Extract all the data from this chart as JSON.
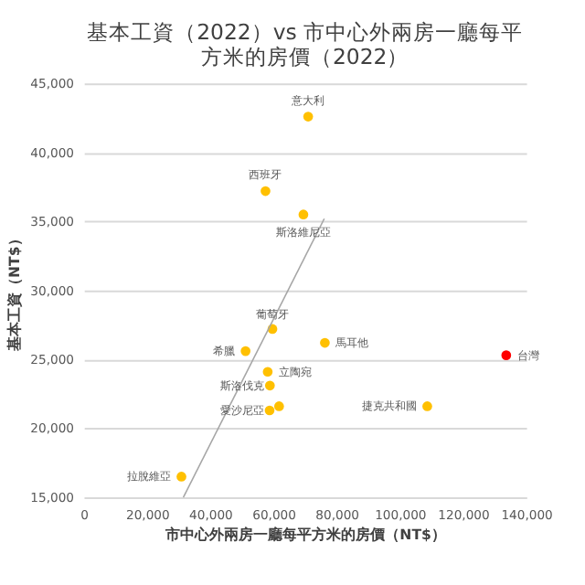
{
  "chart_data": {
    "type": "scatter",
    "title": "基本工資（2022）vs 市中心外兩房一廳每平方米的房價（2022）",
    "xlabel": "市中心外兩房一廳每平方米的房價（NT$）",
    "ylabel": "基本工資（NT$）",
    "xlim": [
      0,
      140000
    ],
    "xticks": [
      {
        "value": 0,
        "label": "0"
      },
      {
        "value": 20000,
        "label": "20,000"
      },
      {
        "value": 40000,
        "label": "40,000"
      },
      {
        "value": 60000,
        "label": "60,000"
      },
      {
        "value": 80000,
        "label": "80,000"
      },
      {
        "value": 100000,
        "label": "100,000"
      },
      {
        "value": 120000,
        "label": "120,000"
      },
      {
        "value": 140000,
        "label": "140,000"
      }
    ],
    "ylim": [
      15000,
      45000
    ],
    "yticks": [
      {
        "value": 15000,
        "label": "15,000"
      },
      {
        "value": 20000,
        "label": "20,000"
      },
      {
        "value": 25000,
        "label": "25,000"
      },
      {
        "value": 30000,
        "label": "30,000"
      },
      {
        "value": 35000,
        "label": "35,000"
      },
      {
        "value": 40000,
        "label": "40,000"
      },
      {
        "value": 45000,
        "label": "45,000"
      }
    ],
    "grid": "y",
    "series": [
      {
        "type": "scatter",
        "marker": "circle",
        "x": [
          71000,
          57500,
          69500,
          59700,
          51200,
          58200,
          58900,
          58800,
          61800,
          76300,
          133700,
          108700,
          30900
        ],
        "values": [
          42600,
          37200,
          35500,
          27200,
          25600,
          24100,
          23100,
          21300,
          21600,
          26200,
          25300,
          21600,
          16500
        ],
        "colors": [
          "#ffc000",
          "#ffc000",
          "#ffc000",
          "#ffc000",
          "#ffc000",
          "#ffc000",
          "#ffc000",
          "#ffc000",
          "#ffc000",
          "#ffc000",
          "#ff0000",
          "#ffc000",
          "#ffc000"
        ]
      },
      {
        "type": "line",
        "marker": "none",
        "color": "#a6a6a6",
        "x": [
          31500,
          76100
        ],
        "values": [
          15000,
          35200
        ]
      }
    ],
    "annotations": [
      {
        "text": "意大利",
        "x": 71000,
        "y": 42600
      },
      {
        "text": "西班牙",
        "x": 57500,
        "y": 37200
      },
      {
        "text": "斯洛維尼亞",
        "x": 69500,
        "y": 35500
      },
      {
        "text": "葡萄牙",
        "x": 59700,
        "y": 27200
      },
      {
        "text": "希臘",
        "x": 51200,
        "y": 25600
      },
      {
        "text": "立陶宛",
        "x": 58200,
        "y": 24100
      },
      {
        "text": "斯洛伐克",
        "x": 58900,
        "y": 23100
      },
      {
        "text": "愛沙尼亞",
        "x": 58800,
        "y": 21300
      },
      {
        "text": "馬耳他",
        "x": 76300,
        "y": 26200
      },
      {
        "text": "台灣",
        "x": 133700,
        "y": 25300
      },
      {
        "text": "捷克共和國",
        "x": 108700,
        "y": 21600
      },
      {
        "text": "拉脫維亞",
        "x": 30900,
        "y": 16500
      }
    ]
  }
}
